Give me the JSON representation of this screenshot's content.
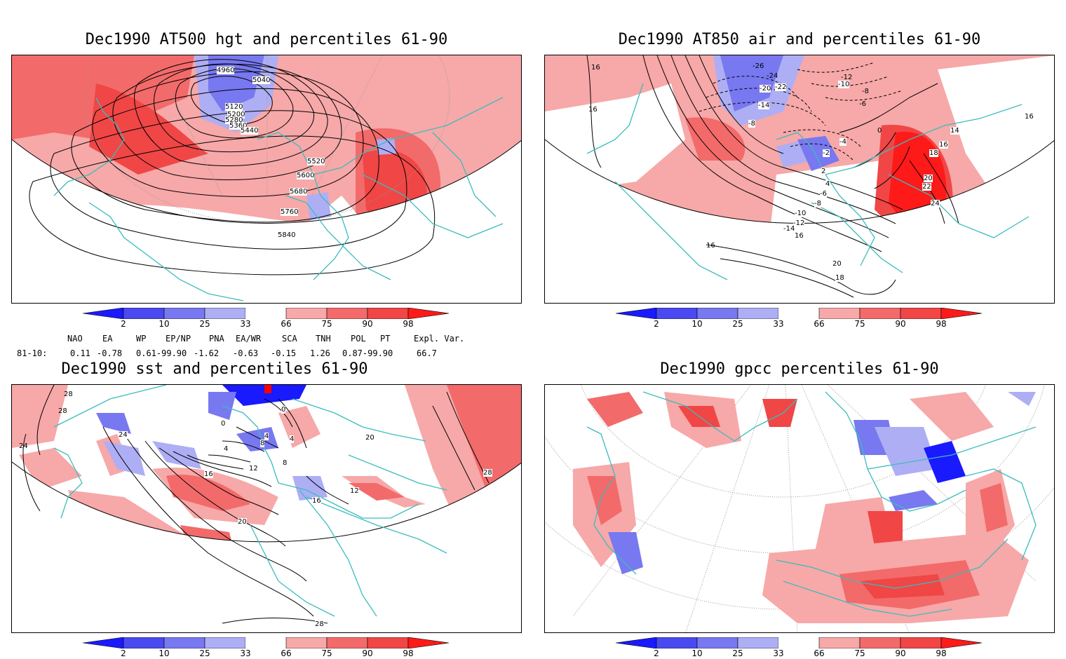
{
  "colors": {
    "blue_2": "#1a1aff",
    "blue_10": "#4a4af0",
    "blue_25": "#7878f0",
    "blue_33": "#aeaef5",
    "red_66": "#f7a8a8",
    "red_75": "#f36a6a",
    "red_90": "#f04646",
    "red_98": "#ff1a1a",
    "coast": "#3cbcbc",
    "contour": "#000000"
  },
  "colorbar_labels": [
    "2",
    "10",
    "25",
    "33",
    "66",
    "75",
    "90",
    "98"
  ],
  "panels": [
    {
      "id": "hgt500",
      "title": "Dec1990 AT500 hgt and percentiles 61-90",
      "contour_labels": [
        "4960",
        "5040",
        "5120",
        "5200",
        "5280",
        "5360",
        "5440",
        "5520",
        "5600",
        "5680",
        "5760",
        "5840"
      ]
    },
    {
      "id": "air850",
      "title": "Dec1990 AT850 air and percentiles 61-90",
      "contour_labels": [
        "16",
        "16",
        "-26",
        "-24",
        "-22",
        "-20",
        "-14",
        "-12",
        "-10",
        "-8",
        "-6",
        "-8",
        "0",
        "-4",
        "-2",
        "2",
        "4",
        "-6",
        "-8",
        "-10",
        "-12",
        "-14",
        "16",
        "16",
        "20",
        "18",
        "14",
        "16",
        "18",
        "20",
        "22",
        "24",
        "16"
      ]
    },
    {
      "id": "sst",
      "title": "Dec1990 sst and percentiles 61-90",
      "contour_labels": [
        "28",
        "28",
        "24",
        "24",
        "0",
        "0",
        "4",
        "8",
        "4",
        "12",
        "16",
        "16",
        "12",
        "20",
        "20",
        "28",
        "28",
        "8",
        "4"
      ]
    },
    {
      "id": "gpcc",
      "title": "Dec1990 gpcc percentiles 61-90",
      "contour_labels": []
    }
  ],
  "teleconnections": {
    "headers": [
      "NAO",
      "EA",
      "WP",
      "EP/NP",
      "PNA",
      "EA/WR",
      "SCA",
      "TNH",
      "POL",
      "PT",
      "Expl. Var."
    ],
    "row_label": "81-10:",
    "values": [
      "0.11",
      "-0.78",
      "0.61-99.90",
      "-1.62",
      "-0.63",
      "-0.15",
      "1.26",
      "0.87-99.90",
      "66.7"
    ]
  }
}
